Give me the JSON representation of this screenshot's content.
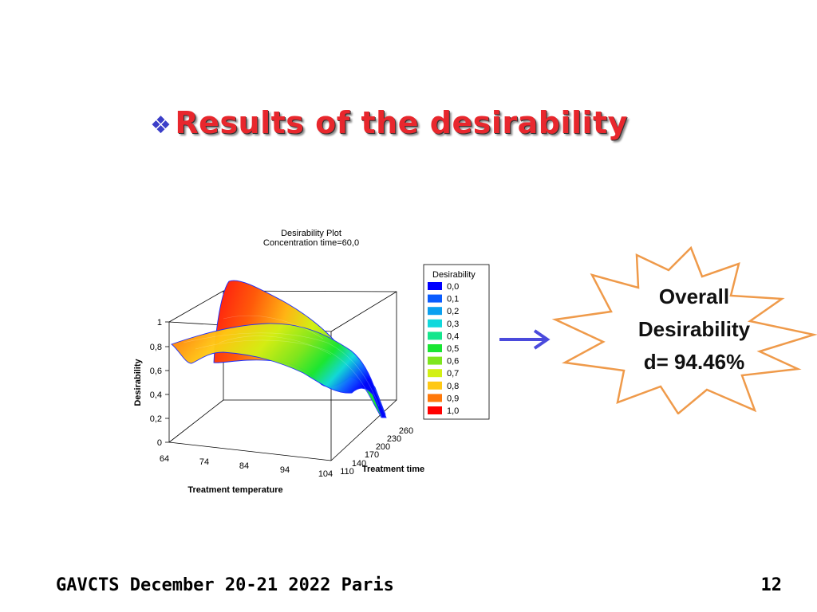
{
  "slide": {
    "bullet": "❖",
    "title": "Results of the desirability",
    "footer_left": "GAVCTS December 20-21 2022 Paris",
    "page_number": "12"
  },
  "callout": {
    "line1": "Overall",
    "line2": "Desirability",
    "line3": "d= 94.46%",
    "arrow_color": "#4a4adc",
    "star_stroke": "#ef9a4a"
  },
  "chart_data": {
    "type": "surface",
    "title": "Desirability Plot",
    "subtitle": "Concentration time=60,0",
    "xlabel": "Treatment temperature",
    "ylabel": "Treatment time",
    "zlabel": "Desirability",
    "x_ticks": [
      "64",
      "74",
      "84",
      "94",
      "104"
    ],
    "y_ticks": [
      "110",
      "140",
      "170",
      "200",
      "230",
      "260"
    ],
    "z_ticks": [
      "0",
      "0,2",
      "0,4",
      "0,6",
      "0,8",
      "1"
    ],
    "xlim": [
      64,
      104
    ],
    "ylim": [
      110,
      260
    ],
    "zlim": [
      0,
      1
    ],
    "legend": {
      "title": "Desirability",
      "position": "right",
      "items": [
        {
          "label": "0,0",
          "color": "#0000ff"
        },
        {
          "label": "0,1",
          "color": "#0a5cff"
        },
        {
          "label": "0,2",
          "color": "#0aa0f0"
        },
        {
          "label": "0,3",
          "color": "#10d8dc"
        },
        {
          "label": "0,4",
          "color": "#14e68c"
        },
        {
          "label": "0,5",
          "color": "#18e632"
        },
        {
          "label": "0,6",
          "color": "#7ee61e"
        },
        {
          "label": "0,7",
          "color": "#d2f014"
        },
        {
          "label": "0,8",
          "color": "#ffc814"
        },
        {
          "label": "0,9",
          "color": "#ff780a"
        },
        {
          "label": "1,0",
          "color": "#ff0000"
        }
      ]
    }
  }
}
